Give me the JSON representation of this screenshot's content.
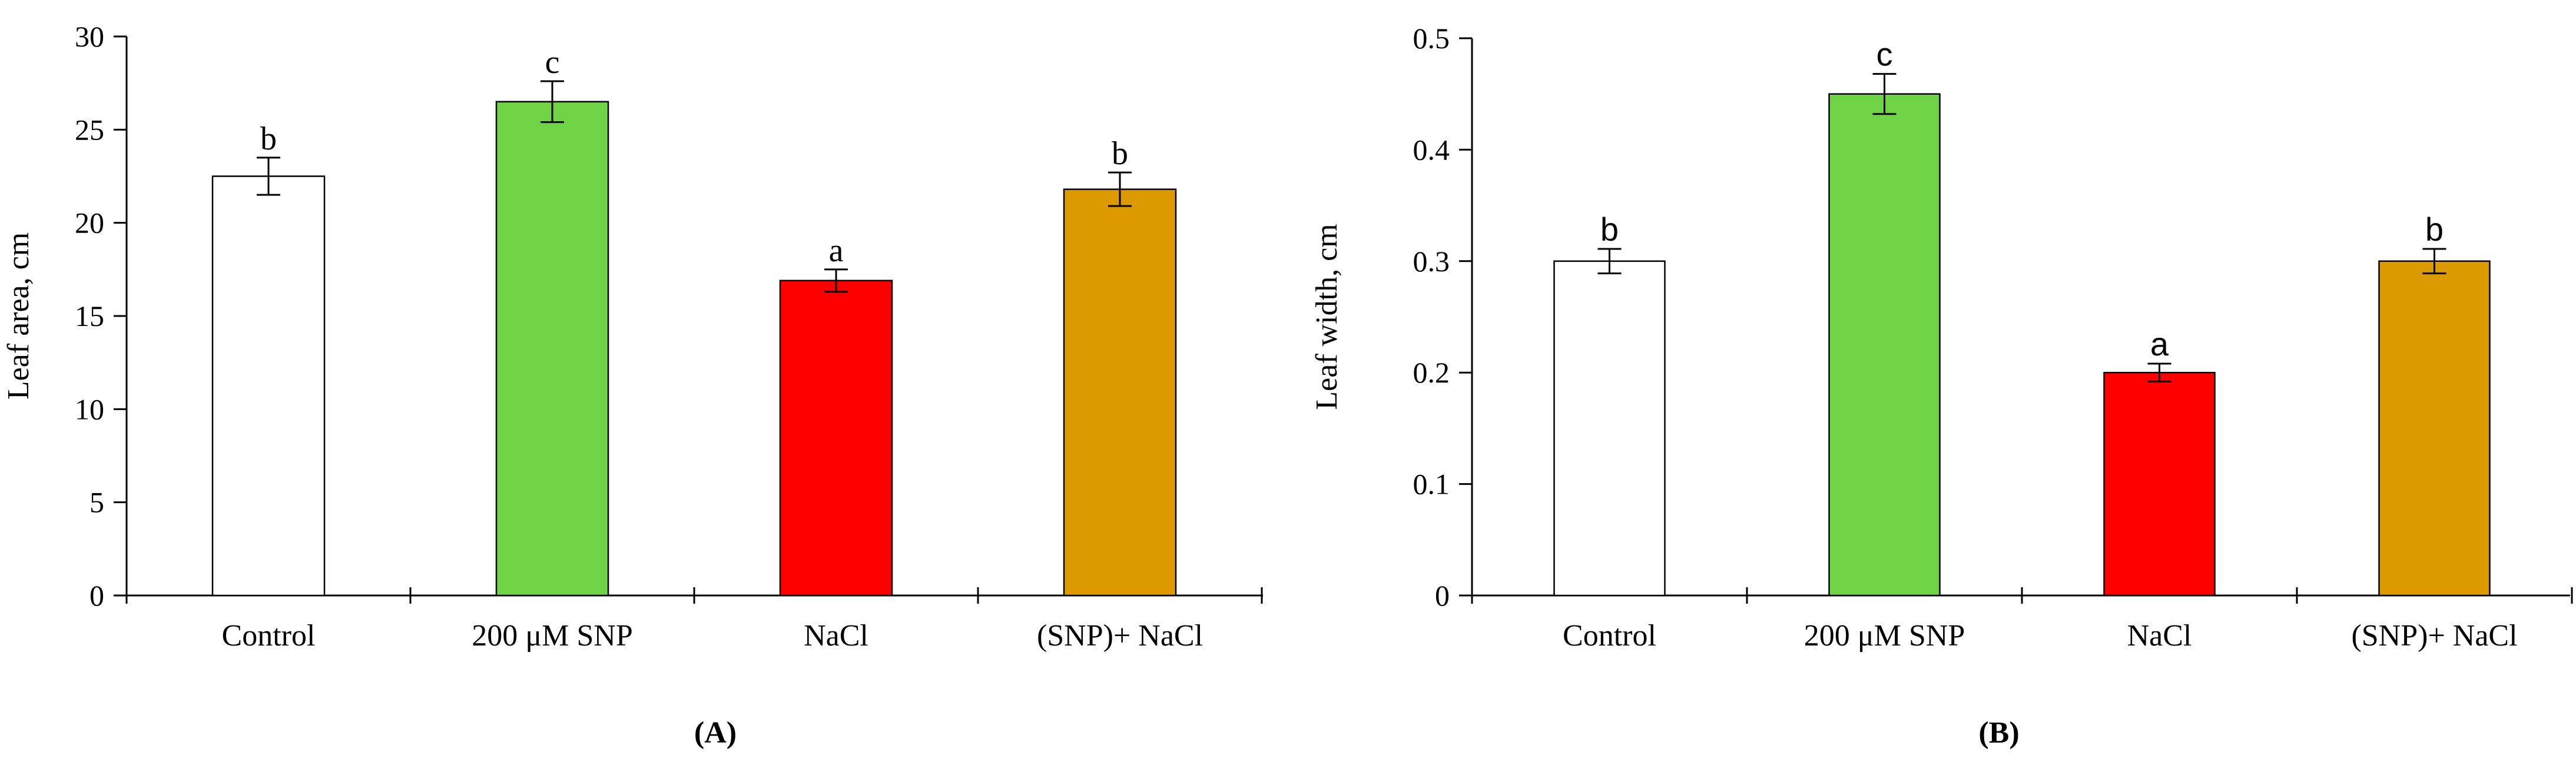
{
  "colors": {
    "control": "#ffffff",
    "snp": "#6ed446",
    "nacl": "#ff0000",
    "snp_nacl": "#dd9a00"
  },
  "chart_data": [
    {
      "type": "bar",
      "panel_label": "(A)",
      "ylabel": "Leaf area, cm",
      "ylim": [
        0,
        30
      ],
      "yticks": [
        "0",
        "5",
        "10",
        "15",
        "20",
        "25",
        "30"
      ],
      "categories": [
        "Control",
        "200 μM SNP",
        "NaCl",
        "(SNP)+ NaCl"
      ],
      "values": [
        22.5,
        26.5,
        16.9,
        21.8
      ],
      "errors": [
        1.0,
        1.1,
        0.6,
        0.9
      ],
      "sig_labels": [
        "b",
        "c",
        "a",
        "b"
      ]
    },
    {
      "type": "bar",
      "panel_label": "(B)",
      "ylabel": "Leaf width, cm",
      "ylim": [
        0,
        0.5
      ],
      "yticks": [
        "0",
        "0.1",
        "0.2",
        "0.3",
        "0.4",
        "0.5"
      ],
      "categories": [
        "Control",
        "200 μM SNP",
        "NaCl",
        "(SNP)+ NaCl"
      ],
      "values": [
        0.3,
        0.45,
        0.2,
        0.3
      ],
      "errors": [
        0.011,
        0.018,
        0.008,
        0.011
      ],
      "sig_labels": [
        "b",
        "c",
        "a",
        "b"
      ]
    }
  ]
}
